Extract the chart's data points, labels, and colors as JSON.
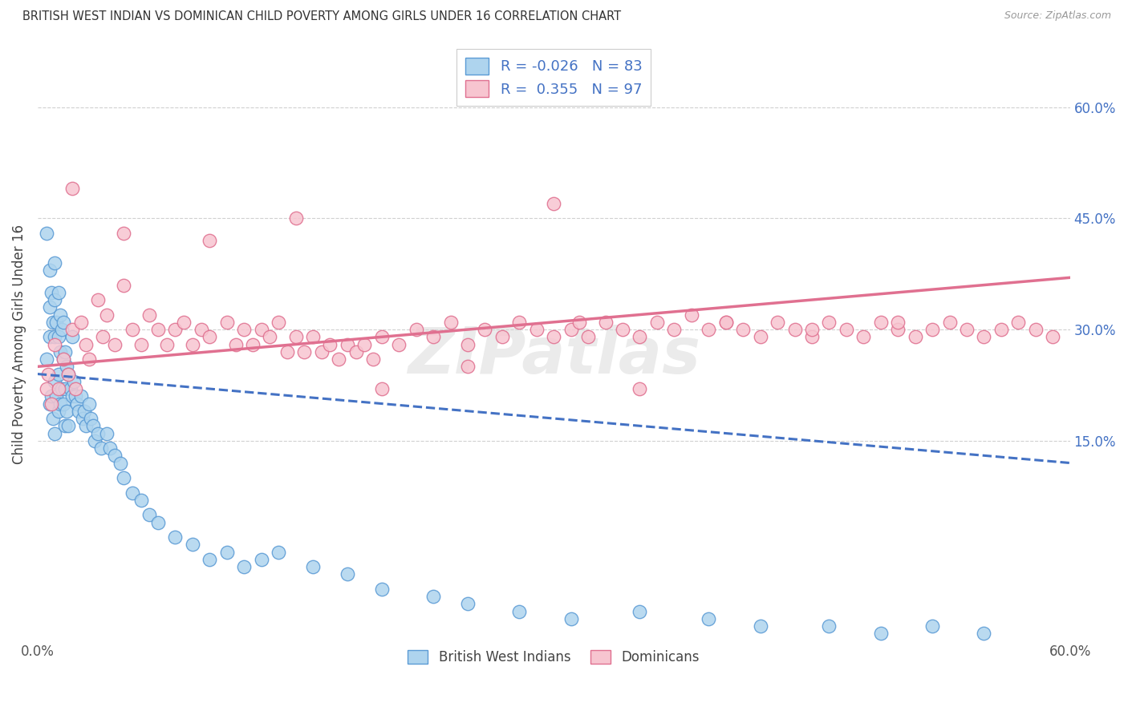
{
  "title": "BRITISH WEST INDIAN VS DOMINICAN CHILD POVERTY AMONG GIRLS UNDER 16 CORRELATION CHART",
  "source": "Source: ZipAtlas.com",
  "ylabel": "Child Poverty Among Girls Under 16",
  "right_ytick_labels": [
    "15.0%",
    "30.0%",
    "45.0%",
    "60.0%"
  ],
  "right_ytick_vals": [
    0.15,
    0.3,
    0.45,
    0.6
  ],
  "xmin": 0.0,
  "xmax": 0.6,
  "ymin": -0.12,
  "ymax": 0.68,
  "legend_R1": "-0.026",
  "legend_N1": "83",
  "legend_R2": "0.355",
  "legend_N2": "97",
  "color_blue": "#aed4ee",
  "color_blue_edge": "#5b9bd5",
  "color_blue_line": "#4472c4",
  "color_pink": "#f7c5d0",
  "color_pink_edge": "#e07090",
  "color_pink_line": "#e07090",
  "color_label_blue": "#4472c4",
  "watermark": "ZIPatlas",
  "grid_color": "#d0d0d0",
  "background": "#ffffff",
  "bwi_x": [
    0.005,
    0.005,
    0.007,
    0.007,
    0.007,
    0.007,
    0.008,
    0.008,
    0.009,
    0.009,
    0.01,
    0.01,
    0.01,
    0.01,
    0.01,
    0.011,
    0.011,
    0.012,
    0.012,
    0.012,
    0.012,
    0.013,
    0.013,
    0.013,
    0.014,
    0.014,
    0.015,
    0.015,
    0.015,
    0.016,
    0.016,
    0.016,
    0.017,
    0.017,
    0.018,
    0.018,
    0.019,
    0.02,
    0.02,
    0.021,
    0.022,
    0.023,
    0.024,
    0.025,
    0.026,
    0.027,
    0.028,
    0.03,
    0.031,
    0.032,
    0.033,
    0.035,
    0.037,
    0.04,
    0.042,
    0.045,
    0.048,
    0.05,
    0.055,
    0.06,
    0.065,
    0.07,
    0.08,
    0.09,
    0.1,
    0.11,
    0.12,
    0.13,
    0.14,
    0.16,
    0.18,
    0.2,
    0.23,
    0.25,
    0.28,
    0.31,
    0.35,
    0.39,
    0.42,
    0.46,
    0.49,
    0.52,
    0.55
  ],
  "bwi_y": [
    0.43,
    0.26,
    0.38,
    0.33,
    0.29,
    0.2,
    0.35,
    0.21,
    0.31,
    0.18,
    0.39,
    0.34,
    0.29,
    0.23,
    0.16,
    0.31,
    0.21,
    0.35,
    0.29,
    0.24,
    0.19,
    0.32,
    0.27,
    0.2,
    0.3,
    0.22,
    0.31,
    0.26,
    0.2,
    0.27,
    0.22,
    0.17,
    0.25,
    0.19,
    0.24,
    0.17,
    0.22,
    0.29,
    0.21,
    0.23,
    0.21,
    0.2,
    0.19,
    0.21,
    0.18,
    0.19,
    0.17,
    0.2,
    0.18,
    0.17,
    0.15,
    0.16,
    0.14,
    0.16,
    0.14,
    0.13,
    0.12,
    0.1,
    0.08,
    0.07,
    0.05,
    0.04,
    0.02,
    0.01,
    -0.01,
    0.0,
    -0.02,
    -0.01,
    0.0,
    -0.02,
    -0.03,
    -0.05,
    -0.06,
    -0.07,
    -0.08,
    -0.09,
    -0.08,
    -0.09,
    -0.1,
    -0.1,
    -0.11,
    -0.1,
    -0.11
  ],
  "dom_x": [
    0.005,
    0.006,
    0.008,
    0.01,
    0.012,
    0.015,
    0.018,
    0.02,
    0.022,
    0.025,
    0.028,
    0.03,
    0.035,
    0.038,
    0.04,
    0.045,
    0.05,
    0.055,
    0.06,
    0.065,
    0.07,
    0.075,
    0.08,
    0.085,
    0.09,
    0.095,
    0.1,
    0.11,
    0.115,
    0.12,
    0.125,
    0.13,
    0.135,
    0.14,
    0.145,
    0.15,
    0.155,
    0.16,
    0.165,
    0.17,
    0.175,
    0.18,
    0.185,
    0.19,
    0.195,
    0.2,
    0.21,
    0.22,
    0.23,
    0.24,
    0.25,
    0.26,
    0.27,
    0.28,
    0.29,
    0.3,
    0.31,
    0.315,
    0.32,
    0.33,
    0.34,
    0.35,
    0.36,
    0.37,
    0.38,
    0.39,
    0.4,
    0.41,
    0.42,
    0.43,
    0.44,
    0.45,
    0.46,
    0.47,
    0.48,
    0.49,
    0.5,
    0.51,
    0.52,
    0.53,
    0.54,
    0.55,
    0.56,
    0.57,
    0.58,
    0.59,
    0.02,
    0.05,
    0.1,
    0.15,
    0.2,
    0.3,
    0.25,
    0.35,
    0.4,
    0.45,
    0.5
  ],
  "dom_y": [
    0.22,
    0.24,
    0.2,
    0.28,
    0.22,
    0.26,
    0.24,
    0.3,
    0.22,
    0.31,
    0.28,
    0.26,
    0.34,
    0.29,
    0.32,
    0.28,
    0.36,
    0.3,
    0.28,
    0.32,
    0.3,
    0.28,
    0.3,
    0.31,
    0.28,
    0.3,
    0.29,
    0.31,
    0.28,
    0.3,
    0.28,
    0.3,
    0.29,
    0.31,
    0.27,
    0.29,
    0.27,
    0.29,
    0.27,
    0.28,
    0.26,
    0.28,
    0.27,
    0.28,
    0.26,
    0.29,
    0.28,
    0.3,
    0.29,
    0.31,
    0.28,
    0.3,
    0.29,
    0.31,
    0.3,
    0.29,
    0.3,
    0.31,
    0.29,
    0.31,
    0.3,
    0.29,
    0.31,
    0.3,
    0.32,
    0.3,
    0.31,
    0.3,
    0.29,
    0.31,
    0.3,
    0.29,
    0.31,
    0.3,
    0.29,
    0.31,
    0.3,
    0.29,
    0.3,
    0.31,
    0.3,
    0.29,
    0.3,
    0.31,
    0.3,
    0.29,
    0.49,
    0.43,
    0.42,
    0.45,
    0.22,
    0.47,
    0.25,
    0.22,
    0.31,
    0.3,
    0.31
  ]
}
